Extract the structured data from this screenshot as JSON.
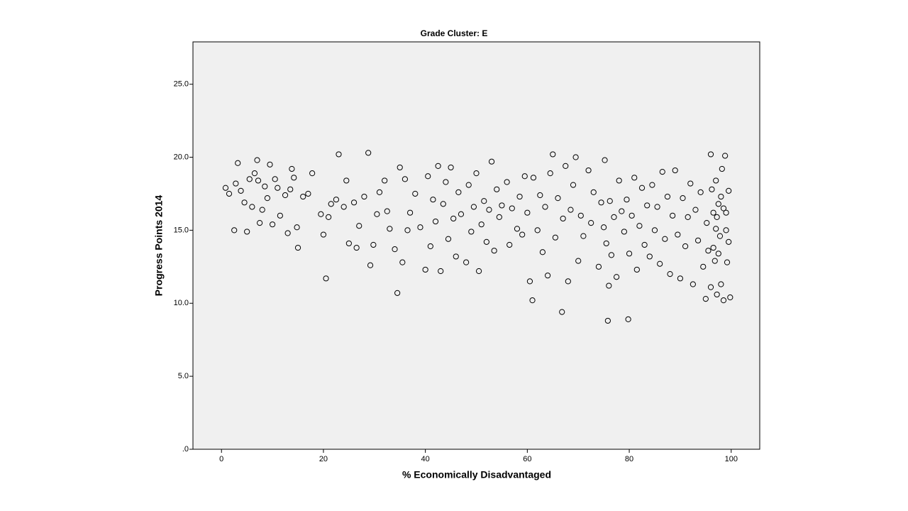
{
  "chart_data": {
    "type": "scatter",
    "title": "Grade Cluster: E",
    "x_label": "% Economically Disadvantaged",
    "y_label": "Progress Points 2014",
    "xlim": [
      -5.6,
      105.6
    ],
    "ylim": [
      0,
      27.9
    ],
    "xticks": [
      0,
      20,
      40,
      60,
      80,
      100
    ],
    "yticks": [
      {
        "value": 0,
        "label": ".0"
      },
      {
        "value": 5,
        "label": "5.0"
      },
      {
        "value": 10,
        "label": "10.0"
      },
      {
        "value": 15,
        "label": "15.0"
      },
      {
        "value": 20,
        "label": "20.0"
      },
      {
        "value": 25,
        "label": "25.0"
      }
    ],
    "grid": false,
    "color": "#000000",
    "background": "#f0f0f0",
    "x": [
      0.8,
      1.5,
      2.5,
      2.8,
      3.2,
      3.8,
      4.5,
      5,
      5.5,
      6,
      6.5,
      7,
      7.2,
      7.5,
      8,
      8.5,
      9,
      9.5,
      10,
      10.5,
      11,
      11.5,
      12.5,
      13,
      13.5,
      13.8,
      14.2,
      14.8,
      15,
      16,
      17,
      17.8,
      19.5,
      20,
      20.5,
      21,
      21.5,
      22.5,
      23,
      24,
      24.5,
      25,
      26,
      26.5,
      27,
      28,
      28.8,
      29.2,
      29.8,
      30.5,
      31,
      32,
      32.5,
      33,
      34,
      34.5,
      35,
      35.5,
      36,
      36.5,
      37,
      38,
      39,
      40,
      40.5,
      41,
      41.5,
      42,
      42.5,
      43,
      43.5,
      44,
      44.5,
      45,
      45.5,
      46,
      46.5,
      47,
      48,
      48.5,
      49,
      49.5,
      50,
      50.5,
      51,
      51.5,
      52,
      52.5,
      53,
      53.5,
      54,
      54.5,
      55,
      56,
      56.5,
      57,
      58,
      58.5,
      59,
      59.5,
      60,
      60.5,
      61,
      61.2,
      62,
      62.5,
      63,
      63.5,
      64,
      64.5,
      65,
      65.5,
      66,
      66.8,
      67,
      67.5,
      68,
      68.5,
      69,
      69.5,
      70,
      70.5,
      71,
      72,
      72.5,
      73,
      74,
      74.5,
      75,
      75.2,
      75.5,
      75.8,
      76,
      76.2,
      76.5,
      77,
      77.5,
      78,
      78.5,
      79,
      79.5,
      79.8,
      80,
      80.5,
      81,
      81.5,
      82,
      82.5,
      83,
      83.5,
      84,
      84.5,
      85,
      85.5,
      86,
      86.5,
      87,
      87.5,
      88,
      88.5,
      89,
      89.5,
      90,
      90.5,
      91,
      91.5,
      92,
      92.5,
      93,
      93.5,
      94,
      94.5,
      95,
      95.2,
      95.5,
      96,
      96,
      96.2,
      96.5,
      96.8,
      97,
      97,
      97.2,
      97.5,
      97.5,
      97.8,
      98,
      98,
      98.2,
      98.5,
      98.8,
      99,
      99,
      99.2,
      99.5,
      99.5,
      99.8,
      96.5,
      97.2,
      98.5
    ],
    "values": [
      17.9,
      17.5,
      15.0,
      18.2,
      19.6,
      17.7,
      16.9,
      14.9,
      18.5,
      16.6,
      18.9,
      19.8,
      18.4,
      15.5,
      16.4,
      18.0,
      17.2,
      19.5,
      15.4,
      18.5,
      17.9,
      16.0,
      17.4,
      14.8,
      17.8,
      19.2,
      18.6,
      15.2,
      13.8,
      17.3,
      17.5,
      18.9,
      16.1,
      14.7,
      11.7,
      15.9,
      16.8,
      17.1,
      20.2,
      16.6,
      18.4,
      14.1,
      16.9,
      13.8,
      15.3,
      17.3,
      20.3,
      12.6,
      14.0,
      16.1,
      17.6,
      18.4,
      16.3,
      15.1,
      13.7,
      10.7,
      19.3,
      12.8,
      18.5,
      15.0,
      16.2,
      17.5,
      15.2,
      12.3,
      18.7,
      13.9,
      17.1,
      15.6,
      19.4,
      12.2,
      16.8,
      18.3,
      14.4,
      19.3,
      15.8,
      13.2,
      17.6,
      16.1,
      12.8,
      18.1,
      14.9,
      16.6,
      18.9,
      12.2,
      15.4,
      17.0,
      14.2,
      16.4,
      19.7,
      13.6,
      17.8,
      15.9,
      16.7,
      18.3,
      14.0,
      16.5,
      15.1,
      17.3,
      14.7,
      18.7,
      16.2,
      11.5,
      10.2,
      18.6,
      15.0,
      17.4,
      13.5,
      16.6,
      11.9,
      18.9,
      20.2,
      14.5,
      17.2,
      9.4,
      15.8,
      19.4,
      11.5,
      16.4,
      18.1,
      20.0,
      12.9,
      16.0,
      14.6,
      19.1,
      15.5,
      17.6,
      12.5,
      16.9,
      15.2,
      19.8,
      14.1,
      8.8,
      11.2,
      17.0,
      13.3,
      15.9,
      11.8,
      18.4,
      16.3,
      14.9,
      17.1,
      8.9,
      13.4,
      16.0,
      18.6,
      12.3,
      15.3,
      17.9,
      14.0,
      16.7,
      13.2,
      18.1,
      15.0,
      16.6,
      12.7,
      19.0,
      14.4,
      17.3,
      12.0,
      16.0,
      19.1,
      14.7,
      11.7,
      17.2,
      13.9,
      15.9,
      18.2,
      11.3,
      16.4,
      14.3,
      17.6,
      12.5,
      10.3,
      15.5,
      13.6,
      20.2,
      11.1,
      17.8,
      16.2,
      12.9,
      15.1,
      18.4,
      10.6,
      16.8,
      13.4,
      14.6,
      17.3,
      11.3,
      19.2,
      10.2,
      20.1,
      15.0,
      16.2,
      12.8,
      17.7,
      14.2,
      10.4,
      13.8,
      15.9,
      16.5
    ]
  }
}
